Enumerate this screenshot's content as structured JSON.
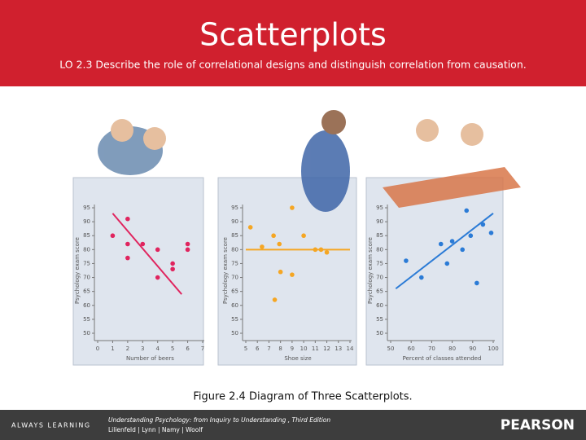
{
  "header": {
    "title": "Scatterplots",
    "subtitle": "LO 2.3 Describe the role of correlational designs and distinguish correlation from causation."
  },
  "caption": "Figure 2.4   Diagram of Three Scatterplots.",
  "footer": {
    "tagline": "ALWAYS LEARNING",
    "book": "Understanding Psychology: from Inquiry to Understanding , Third Edition",
    "authors": "Lilienfeld | Lynn | Namy | Woolf",
    "brand": "PEARSON"
  },
  "chart_data": [
    {
      "type": "scatter",
      "x_label": "Number of beers",
      "y_label": "Psychology exam score",
      "color": "#e0245e",
      "x": [
        1,
        2,
        2,
        2,
        3,
        4,
        4,
        5,
        5,
        6,
        6
      ],
      "values": [
        85,
        91,
        82,
        77,
        82,
        80,
        70,
        75,
        73,
        82,
        80
      ],
      "trend": {
        "x": [
          1,
          5.6
        ],
        "y": [
          93,
          64
        ]
      },
      "xlim": [
        0,
        7
      ],
      "xticks": [
        0,
        1,
        2,
        3,
        4,
        5,
        6,
        7
      ],
      "ylim": [
        50,
        95
      ],
      "yticks": [
        50,
        55,
        60,
        65,
        70,
        75,
        80,
        85,
        90,
        95
      ]
    },
    {
      "type": "scatter",
      "x_label": "Shoe size",
      "y_label": "Psychology exam score",
      "color": "#f5a623",
      "x": [
        5.4,
        6.4,
        7.4,
        7.9,
        9,
        8,
        9,
        7.5,
        10,
        11,
        11.5,
        12
      ],
      "values": [
        88,
        81,
        85,
        82,
        95,
        72,
        71,
        62,
        85,
        80,
        80,
        79
      ],
      "trend": {
        "x": [
          5,
          14
        ],
        "y": [
          80,
          80
        ]
      },
      "xlim": [
        5,
        14
      ],
      "xticks": [
        5,
        6,
        7,
        8,
        9,
        10,
        11,
        12,
        13,
        14
      ],
      "ylim": [
        50,
        95
      ],
      "yticks": [
        50,
        55,
        60,
        65,
        70,
        75,
        80,
        85,
        90,
        95
      ]
    },
    {
      "type": "scatter",
      "x_label": "Percent of classes attended",
      "y_label": "Psychology exam score",
      "color": "#2b7bd6",
      "x": [
        57.5,
        65,
        74.5,
        80,
        77.5,
        85,
        87,
        89,
        92,
        95,
        99
      ],
      "values": [
        76,
        70,
        82,
        83,
        75,
        80,
        94,
        85,
        68,
        89,
        86
      ],
      "trend": {
        "x": [
          52.5,
          100
        ],
        "y": [
          66,
          93
        ]
      },
      "xlim": [
        50,
        100
      ],
      "xticks": [
        50,
        60,
        70,
        80,
        90,
        100
      ],
      "ylim": [
        50,
        95
      ],
      "yticks": [
        50,
        55,
        60,
        65,
        70,
        75,
        80,
        85,
        90,
        95
      ]
    }
  ]
}
